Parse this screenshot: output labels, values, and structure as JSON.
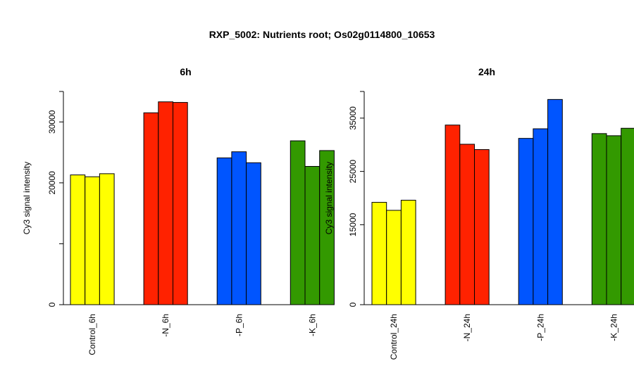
{
  "title": "RXP_5002: Nutrients root; Os02g0114800_10653",
  "colors": {
    "Control": "#ffff00",
    "-N": "#ff2200",
    "-P": "#0055ff",
    "-K": "#339900"
  },
  "chart_data": [
    {
      "type": "bar",
      "title": "6h",
      "ylabel": "Cy3 signal intensity",
      "ylim": [
        0,
        35000
      ],
      "yticks": [
        0,
        10000,
        20000,
        30000
      ],
      "ytick_labels": [
        "0",
        "",
        "20000",
        "30000"
      ],
      "grid": false,
      "categories": [
        "Control_6h",
        "-N_6h",
        "-P_6h",
        "-K_6h"
      ],
      "groups": [
        {
          "name": "Control_6h",
          "color_key": "Control",
          "values": [
            21300,
            21000,
            21500
          ]
        },
        {
          "name": "-N_6h",
          "color_key": "-N",
          "values": [
            31500,
            33300,
            33200
          ]
        },
        {
          "name": "-P_6h",
          "color_key": "-P",
          "values": [
            24100,
            25100,
            23300
          ]
        },
        {
          "name": "-K_6h",
          "color_key": "-K",
          "values": [
            26900,
            22700,
            25300
          ]
        }
      ]
    },
    {
      "type": "bar",
      "title": "24h",
      "ylabel": "Cy3 signal intensity",
      "ylim": [
        0,
        40000
      ],
      "yticks": [
        0,
        15000,
        25000,
        35000
      ],
      "ytick_labels": [
        "0",
        "15000",
        "25000",
        "35000"
      ],
      "grid": false,
      "categories": [
        "Control_24h",
        "-N_24h",
        "-P_24h",
        "-K_24h"
      ],
      "groups": [
        {
          "name": "Control_24h",
          "color_key": "Control",
          "values": [
            19200,
            17700,
            19600
          ]
        },
        {
          "name": "-N_24h",
          "color_key": "-N",
          "values": [
            33700,
            30100,
            29100
          ]
        },
        {
          "name": "-P_24h",
          "color_key": "-P",
          "values": [
            31200,
            33000,
            38500
          ]
        },
        {
          "name": "-K_24h",
          "color_key": "-K",
          "values": [
            32100,
            31700,
            33100
          ]
        }
      ]
    }
  ]
}
